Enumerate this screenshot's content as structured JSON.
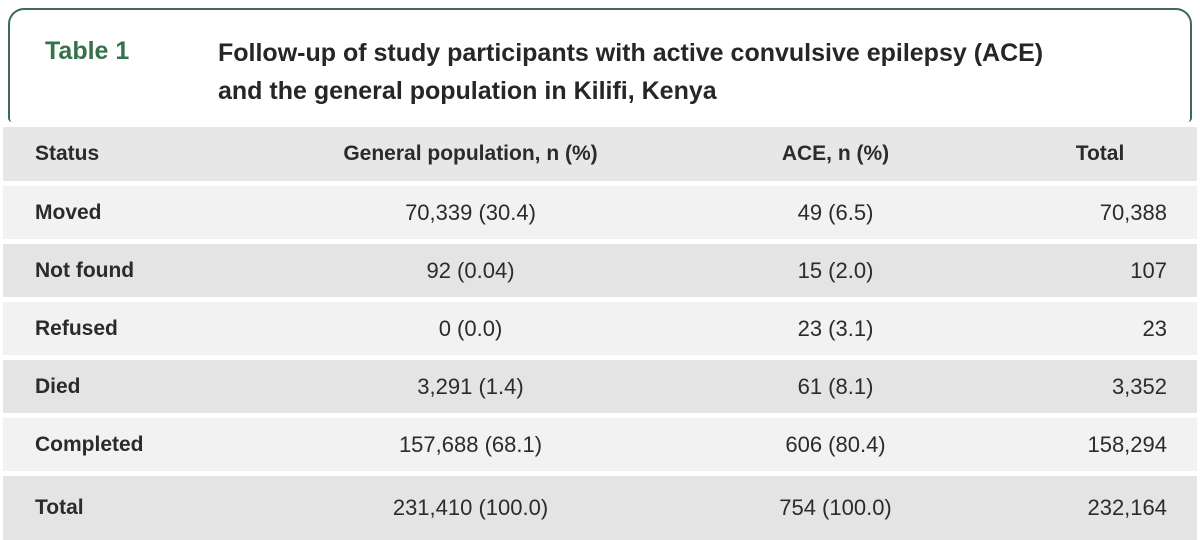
{
  "header": {
    "label": "Table 1",
    "title": "Follow-up of study participants with active convulsive epilepsy (ACE) and the general population in Kilifi, Kenya",
    "title_lines": [
      "Follow-up of study participants with active convulsive epilepsy (ACE)",
      "and the general population in Kilifi, Kenya"
    ]
  },
  "colors": {
    "border_green": "#3e6b4f",
    "label_green": "#347249",
    "header_row_bg": "#e7e7e7",
    "shaded_row_bg": "#e4e4e4",
    "light_row_bg": "#f2f2f2",
    "text": "#2b2b2b"
  },
  "table": {
    "columns": [
      "Status",
      "General population, n (%)",
      "ACE, n (%)",
      "Total"
    ],
    "rows": [
      {
        "status": "Moved",
        "general_population": "70,339 (30.4)",
        "ace": "49 (6.5)",
        "total": "70,388"
      },
      {
        "status": "Not found",
        "general_population": "92 (0.04)",
        "ace": "15 (2.0)",
        "total": "107"
      },
      {
        "status": "Refused",
        "general_population": "0 (0.0)",
        "ace": "23 (3.1)",
        "total": "23"
      },
      {
        "status": "Died",
        "general_population": "3,291 (1.4)",
        "ace": "61 (8.1)",
        "total": "3,352"
      },
      {
        "status": "Completed",
        "general_population": "157,688 (68.1)",
        "ace": "606 (80.4)",
        "total": "158,294"
      },
      {
        "status": "Total",
        "general_population": "231,410 (100.0)",
        "ace": "754 (100.0)",
        "total": "232,164"
      }
    ]
  },
  "chart_data": {
    "type": "table",
    "title": "Follow-up of study participants with active convulsive epilepsy (ACE) and the general population in Kilifi, Kenya",
    "columns": [
      "Status",
      "General population, n (%)",
      "ACE, n (%)",
      "Total"
    ],
    "rows": [
      [
        "Moved",
        "70,339 (30.4)",
        "49 (6.5)",
        "70,388"
      ],
      [
        "Not found",
        "92 (0.04)",
        "15 (2.0)",
        "107"
      ],
      [
        "Refused",
        "0 (0.0)",
        "23 (3.1)",
        "23"
      ],
      [
        "Died",
        "3,291 (1.4)",
        "61 (8.1)",
        "3,352"
      ],
      [
        "Completed",
        "157,688 (68.1)",
        "606 (80.4)",
        "158,294"
      ],
      [
        "Total",
        "231,410 (100.0)",
        "754 (100.0)",
        "232,164"
      ]
    ]
  }
}
